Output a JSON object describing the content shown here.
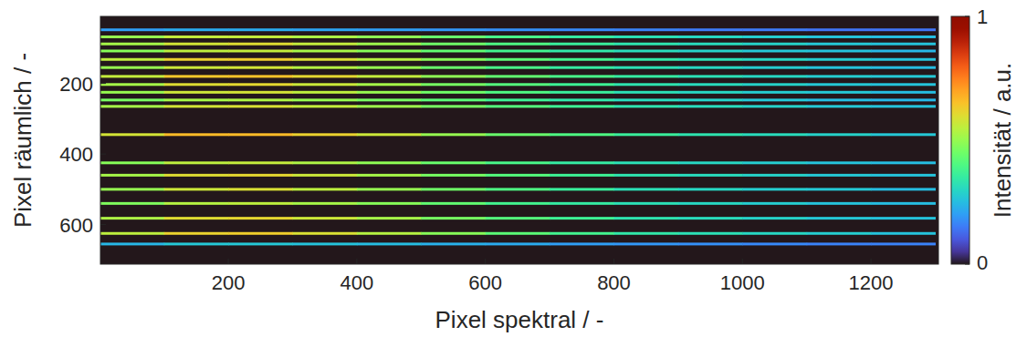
{
  "chart_data": {
    "type": "heatmap",
    "x_label": "Pixel spektral / -",
    "y_label": "Pixel räumlich / -",
    "xlim": [
      1,
      1305
    ],
    "ylim": [
      10,
      712
    ],
    "xticks": [
      200,
      400,
      600,
      800,
      1000,
      1200
    ],
    "yticks": [
      200,
      400,
      600
    ],
    "x": [
      50,
      150,
      250,
      350,
      450,
      550,
      650,
      750,
      850,
      950,
      1050,
      1150,
      1250
    ],
    "lines": [
      {
        "row": 48,
        "values": [
          0.2,
          0.22,
          0.22,
          0.21,
          0.2,
          0.19,
          0.18,
          0.17,
          0.16,
          0.15,
          0.15,
          0.14,
          0.14
        ]
      },
      {
        "row": 68,
        "values": [
          0.5,
          0.56,
          0.56,
          0.53,
          0.49,
          0.44,
          0.39,
          0.35,
          0.32,
          0.3,
          0.28,
          0.26,
          0.25
        ]
      },
      {
        "row": 88,
        "values": [
          0.52,
          0.58,
          0.6,
          0.56,
          0.51,
          0.45,
          0.4,
          0.36,
          0.33,
          0.31,
          0.29,
          0.27,
          0.26
        ]
      },
      {
        "row": 108,
        "values": [
          0.48,
          0.55,
          0.56,
          0.52,
          0.48,
          0.43,
          0.38,
          0.34,
          0.31,
          0.29,
          0.27,
          0.26,
          0.24
        ]
      },
      {
        "row": 132,
        "values": [
          0.55,
          0.62,
          0.63,
          0.59,
          0.54,
          0.48,
          0.42,
          0.38,
          0.34,
          0.32,
          0.3,
          0.28,
          0.26
        ]
      },
      {
        "row": 155,
        "values": [
          0.5,
          0.57,
          0.58,
          0.54,
          0.5,
          0.44,
          0.39,
          0.35,
          0.32,
          0.3,
          0.28,
          0.26,
          0.25
        ]
      },
      {
        "row": 180,
        "values": [
          0.56,
          0.64,
          0.65,
          0.61,
          0.56,
          0.49,
          0.43,
          0.39,
          0.35,
          0.32,
          0.3,
          0.28,
          0.27
        ]
      },
      {
        "row": 203,
        "values": [
          0.52,
          0.6,
          0.61,
          0.57,
          0.52,
          0.46,
          0.41,
          0.37,
          0.33,
          0.31,
          0.29,
          0.27,
          0.26
        ]
      },
      {
        "row": 225,
        "values": [
          0.5,
          0.57,
          0.58,
          0.55,
          0.5,
          0.45,
          0.4,
          0.36,
          0.32,
          0.3,
          0.28,
          0.27,
          0.25
        ]
      },
      {
        "row": 247,
        "values": [
          0.46,
          0.52,
          0.53,
          0.5,
          0.46,
          0.42,
          0.37,
          0.34,
          0.31,
          0.29,
          0.27,
          0.25,
          0.24
        ]
      },
      {
        "row": 265,
        "values": [
          0.52,
          0.58,
          0.59,
          0.56,
          0.51,
          0.46,
          0.41,
          0.37,
          0.33,
          0.31,
          0.29,
          0.27,
          0.26
        ]
      },
      {
        "row": 345,
        "values": [
          0.58,
          0.66,
          0.66,
          0.62,
          0.57,
          0.5,
          0.44,
          0.4,
          0.36,
          0.33,
          0.31,
          0.29,
          0.27
        ]
      },
      {
        "row": 425,
        "values": [
          0.48,
          0.55,
          0.56,
          0.53,
          0.49,
          0.44,
          0.39,
          0.35,
          0.32,
          0.3,
          0.28,
          0.26,
          0.25
        ]
      },
      {
        "row": 460,
        "values": [
          0.52,
          0.6,
          0.61,
          0.57,
          0.52,
          0.46,
          0.41,
          0.37,
          0.33,
          0.31,
          0.29,
          0.27,
          0.26
        ]
      },
      {
        "row": 500,
        "values": [
          0.5,
          0.57,
          0.59,
          0.55,
          0.5,
          0.45,
          0.4,
          0.36,
          0.32,
          0.3,
          0.28,
          0.27,
          0.25
        ]
      },
      {
        "row": 540,
        "values": [
          0.47,
          0.54,
          0.55,
          0.52,
          0.48,
          0.43,
          0.38,
          0.35,
          0.32,
          0.3,
          0.28,
          0.26,
          0.25
        ]
      },
      {
        "row": 582,
        "values": [
          0.53,
          0.6,
          0.61,
          0.57,
          0.52,
          0.46,
          0.41,
          0.37,
          0.33,
          0.31,
          0.29,
          0.27,
          0.26
        ]
      },
      {
        "row": 625,
        "values": [
          0.55,
          0.62,
          0.63,
          0.59,
          0.54,
          0.48,
          0.42,
          0.38,
          0.34,
          0.32,
          0.3,
          0.28,
          0.26
        ]
      },
      {
        "row": 655,
        "values": [
          0.24,
          0.27,
          0.27,
          0.26,
          0.25,
          0.23,
          0.22,
          0.2,
          0.19,
          0.18,
          0.17,
          0.16,
          0.16
        ]
      }
    ],
    "colorbar_range": [
      0,
      1
    ],
    "colorbar_ticks": [
      0,
      1
    ],
    "colorbar_label": "Intensität / a.u."
  }
}
